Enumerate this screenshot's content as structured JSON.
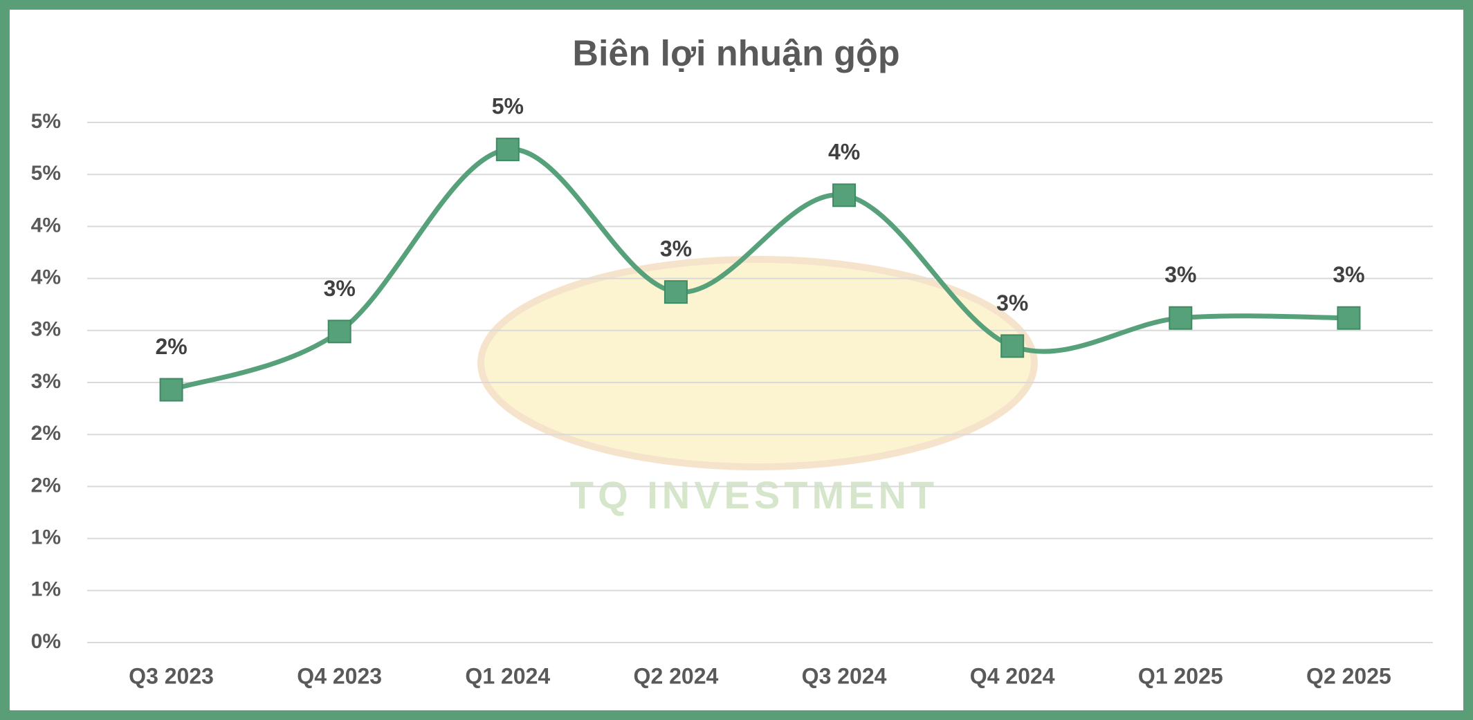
{
  "chart_data": {
    "type": "line",
    "title": "Biên lợi nhuận gộp",
    "watermark": "TQ INVESTMENT",
    "categories": [
      "Q3 2023",
      "Q4 2023",
      "Q1 2024",
      "Q2 2024",
      "Q3 2024",
      "Q4 2024",
      "Q1 2025",
      "Q2 2025"
    ],
    "series": [
      {
        "name": "Biên lợi nhuận gộp",
        "color": "#56a07a",
        "values": [
          2.43,
          2.99,
          4.74,
          3.37,
          4.3,
          2.85,
          3.12,
          3.12
        ],
        "value_labels": [
          "2%",
          "3%",
          "5%",
          "3%",
          "4%",
          "3%",
          "3%",
          "3%"
        ]
      }
    ],
    "ylim": [
      0,
      5
    ],
    "yticks": [
      {
        "value": 0,
        "label": "0%"
      },
      {
        "value": 0.5,
        "label": "1%"
      },
      {
        "value": 1,
        "label": "1%"
      },
      {
        "value": 1.5,
        "label": "2%"
      },
      {
        "value": 2,
        "label": "2%"
      },
      {
        "value": 2.5,
        "label": "3%"
      },
      {
        "value": 3,
        "label": "3%"
      },
      {
        "value": 3.5,
        "label": "4%"
      },
      {
        "value": 4,
        "label": "4%"
      },
      {
        "value": 4.5,
        "label": "5%"
      },
      {
        "value": 5,
        "label": "5%"
      }
    ],
    "grid": true,
    "smooth": true
  }
}
